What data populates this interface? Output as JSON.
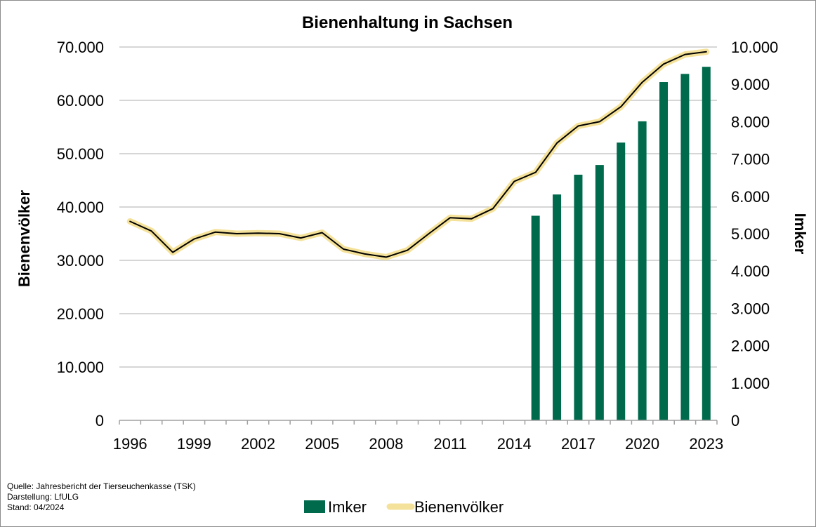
{
  "chart_data": {
    "type": "bar+line",
    "title": "Bienenhaltung  in Sachsen",
    "y_left_label": "Bienenvölker",
    "y_right_label": "Imker",
    "x_tick_labels": [
      "1996",
      "1999",
      "2002",
      "2005",
      "2008",
      "2011",
      "2014",
      "2017",
      "2020",
      "2023"
    ],
    "y_left_ticks": [
      "0",
      "10.000",
      "20.000",
      "30.000",
      "40.000",
      "50.000",
      "60.000",
      "70.000"
    ],
    "y_right_ticks": [
      "0",
      "1.000",
      "2.000",
      "3.000",
      "4.000",
      "5.000",
      "6.000",
      "7.000",
      "8.000",
      "9.000",
      "10.000"
    ],
    "ylim_left": [
      0,
      70000
    ],
    "ylim_right": [
      0,
      10000
    ],
    "grid": true,
    "legend_position": "bottom",
    "series": [
      {
        "name": "Imker",
        "kind": "bar",
        "axis": "right",
        "color": "#006a4d",
        "x": [
          2015,
          2016,
          2017,
          2018,
          2019,
          2020,
          2021,
          2022,
          2023
        ],
        "values": [
          5480,
          6050,
          6580,
          6840,
          7440,
          8010,
          9060,
          9280,
          9470
        ]
      },
      {
        "name": "Bienenvölker",
        "kind": "line",
        "axis": "left",
        "color": "#000000",
        "halo_color": "#f5e29a",
        "x": [
          1996,
          1997,
          1998,
          1999,
          2000,
          2001,
          2002,
          2003,
          2004,
          2005,
          2006,
          2007,
          2008,
          2009,
          2010,
          2011,
          2012,
          2013,
          2014,
          2015,
          2016,
          2017,
          2018,
          2019,
          2020,
          2021,
          2022,
          2023
        ],
        "values": [
          37300,
          35500,
          31500,
          34000,
          35300,
          35000,
          35100,
          35000,
          34200,
          35200,
          32100,
          31200,
          30600,
          31900,
          35000,
          38000,
          37800,
          39700,
          44800,
          46500,
          52000,
          55200,
          56000,
          58800,
          63400,
          66800,
          68600,
          69100
        ]
      }
    ]
  },
  "footnote": {
    "source": "Quelle: Jahresbericht der Tierseuchenkasse (TSK)",
    "author": "Darstellung: LfULG",
    "date": "Stand: 04/2024"
  }
}
